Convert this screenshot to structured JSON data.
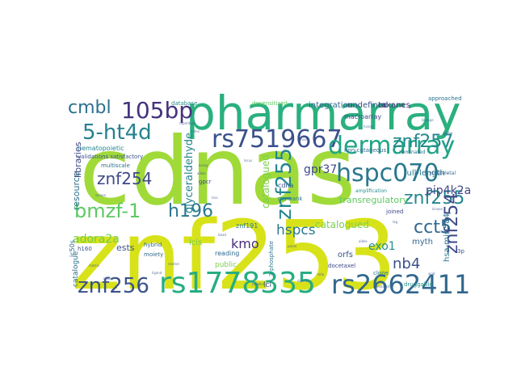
{
  "word_cloud": {
    "words": [
      {
        "text": "cdnas",
        "color": "#a0da39"
      },
      {
        "text": "znf253",
        "color": "#d8e219"
      },
      {
        "text": "pharmarray",
        "color": "#2ab07f"
      },
      {
        "text": "rs1778335",
        "color": "#27ad81"
      },
      {
        "text": "rs2662411",
        "color": "#31678e"
      },
      {
        "text": "rs7519667",
        "color": "#3b518b"
      },
      {
        "text": "dermarray",
        "color": "#20a486"
      },
      {
        "text": "hspc070",
        "color": "#2a788e"
      },
      {
        "text": "znf256",
        "color": "#3b528b"
      },
      {
        "text": "105bp",
        "color": "#46327e"
      },
      {
        "text": "5-ht4d",
        "color": "#26828e"
      },
      {
        "text": "cmbl",
        "color": "#2d708e"
      },
      {
        "text": "bmzf-1",
        "color": "#5ec962"
      },
      {
        "text": "h196",
        "color": "#2a788e"
      },
      {
        "text": "znf257",
        "color": "#23888e"
      },
      {
        "text": "znf254",
        "color": "#3e4989"
      },
      {
        "text": "znf255",
        "color": "#24868e"
      },
      {
        "text": "cct5",
        "color": "#31688e"
      },
      {
        "text": "nb4",
        "color": "#3b528b"
      },
      {
        "text": "kmo",
        "color": "#472d7b"
      },
      {
        "text": "hspcs",
        "color": "#2a788e"
      },
      {
        "text": "gpr37",
        "color": "#3e4a89"
      },
      {
        "text": "pip4k2a",
        "color": "#404688"
      },
      {
        "text": "adora2a",
        "color": "#6ece58"
      },
      {
        "text": "exo1",
        "color": "#21918c"
      },
      {
        "text": "myth",
        "color": "#31688e"
      },
      {
        "text": "opn3",
        "color": "#2c728e"
      },
      {
        "text": "cd34",
        "color": "#3b528b"
      },
      {
        "text": "glyceraldehyde",
        "color": "#25858e"
      },
      {
        "text": "catalogued",
        "color": "#7ad151"
      },
      {
        "text": "transregulatory",
        "color": "#5ec962"
      },
      {
        "text": "full-length",
        "color": "#2a788e"
      },
      {
        "text": "integration",
        "color": "#31688e"
      },
      {
        "text": "undefined",
        "color": "#3b528b"
      },
      {
        "text": "taxanes",
        "color": "#472d7b"
      },
      {
        "text": "database",
        "color": "#21918c"
      },
      {
        "text": "desensitized",
        "color": "#5ec962"
      },
      {
        "text": "interactome",
        "color": "#3b528b"
      },
      {
        "text": "resource",
        "color": "#2c728e"
      },
      {
        "text": "libraries",
        "color": "#3e4989"
      },
      {
        "text": "hematopoietic",
        "color": "#23888e"
      },
      {
        "text": "multiscale",
        "color": "#2d708e"
      },
      {
        "text": "validations satisfactory",
        "color": "#3b528b"
      },
      {
        "text": "hsa-mir-584",
        "color": "#2a788e"
      },
      {
        "text": "ests",
        "color": "#3b528b"
      },
      {
        "text": "hybrid",
        "color": "#31688e"
      },
      {
        "text": "lcls",
        "color": "#6ece58"
      },
      {
        "text": "public",
        "color": "#7ad151"
      },
      {
        "text": "reading",
        "color": "#31688e"
      },
      {
        "text": "orfs",
        "color": "#3b528b"
      },
      {
        "text": "docetaxel",
        "color": "#3e4989"
      },
      {
        "text": "druggable",
        "color": "#21918c"
      },
      {
        "text": "catalogue",
        "color": "#2c728e"
      },
      {
        "text": "ic50s",
        "color": "#31688e"
      },
      {
        "text": "macroarray",
        "color": "#3e4989"
      },
      {
        "text": "non-cutaneous",
        "color": "#31688e"
      },
      {
        "text": "znf191",
        "color": "#2a788e"
      },
      {
        "text": "lcl",
        "color": "#3b528b"
      },
      {
        "text": "approached",
        "color": "#2c728e"
      },
      {
        "text": "cdna",
        "color": "#3b528b"
      },
      {
        "text": "genbank",
        "color": "#2a788e"
      },
      {
        "text": "joined",
        "color": "#3e4989"
      },
      {
        "text": "nominated",
        "color": "#2c728e"
      },
      {
        "text": "cytoskeletal",
        "color": "#31688e"
      },
      {
        "text": "amplification",
        "color": "#21918c"
      },
      {
        "text": "clone",
        "color": "#2a788e"
      },
      {
        "text": "h160",
        "color": "#3b528b"
      },
      {
        "text": "gpcr",
        "color": "#3e4989"
      },
      {
        "text": "moiety",
        "color": "#31688e"
      },
      {
        "text": "3-phosphate",
        "color": "#2a788e"
      },
      {
        "text": "3p",
        "color": "#3b528b"
      }
    ]
  }
}
